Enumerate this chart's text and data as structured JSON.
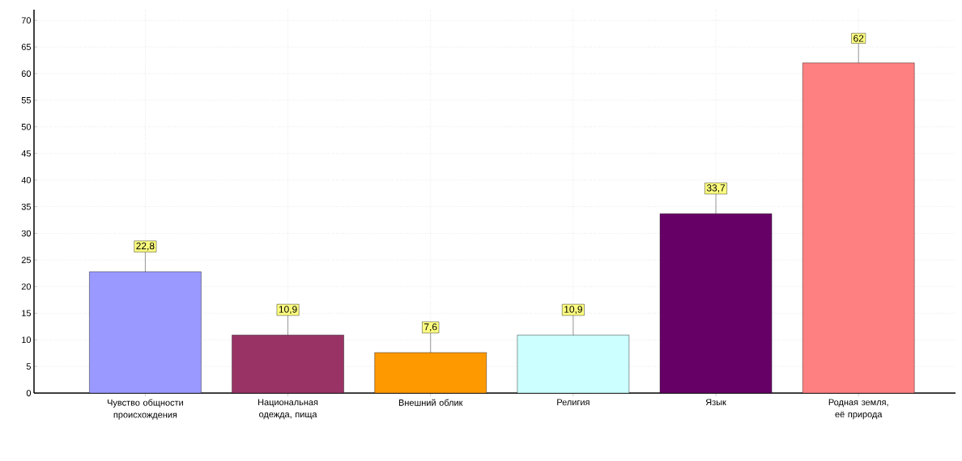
{
  "chart_data": {
    "type": "bar",
    "categories": [
      "Чувство общности происхождения",
      "Национальная одежда, пища",
      "Внешний облик",
      "Религия",
      "Язык",
      "Родная земля, её природа"
    ],
    "values": [
      22.8,
      10.9,
      7.6,
      10.9,
      33.7,
      62
    ],
    "colors": [
      "#9999ff",
      "#993366",
      "#ff9900",
      "#ccffff",
      "#660066",
      "#ff8080"
    ],
    "value_labels": [
      "22,8",
      "10,9",
      "7,6",
      "10,9",
      "33,7",
      "62"
    ],
    "ylim": [
      0,
      72
    ],
    "yticks": [
      0,
      5,
      10,
      15,
      20,
      25,
      30,
      35,
      40,
      45,
      50,
      55,
      60,
      65,
      70
    ],
    "grid": true
  }
}
